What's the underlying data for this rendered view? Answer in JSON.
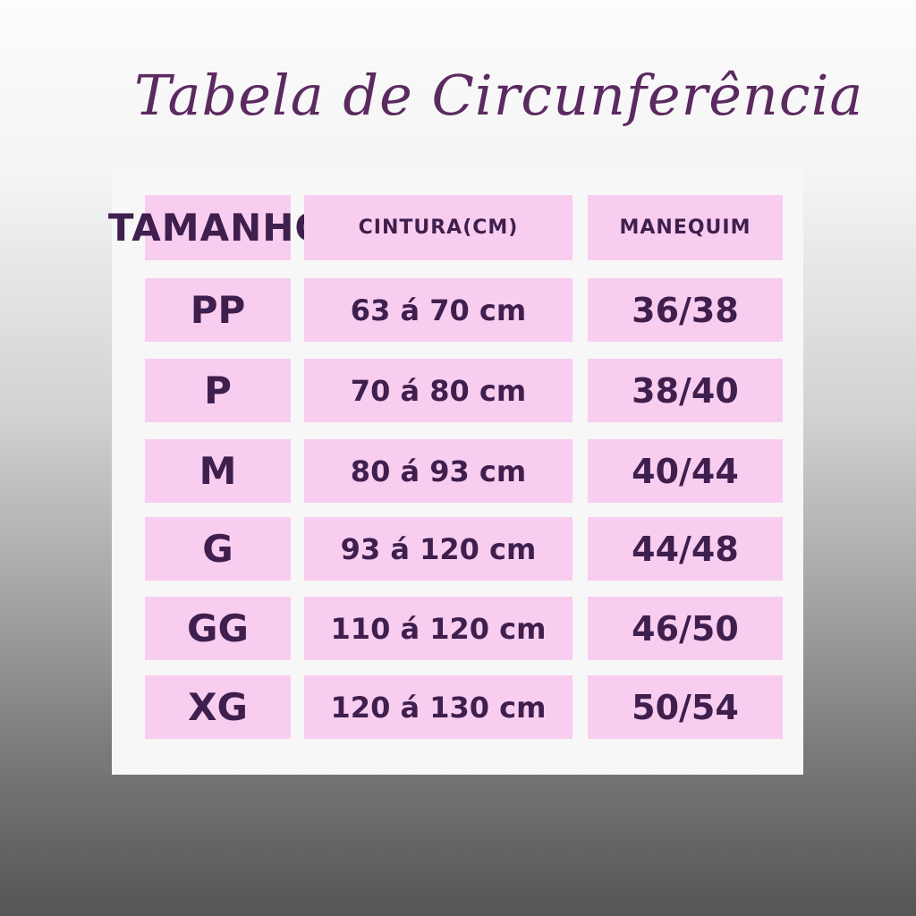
{
  "title": "Tabela de Circunferência",
  "headers": [
    "TAMANHO",
    "CINTURA(CM)",
    "MANEQUIM"
  ],
  "rows": [
    {
      "size": "PP",
      "waist": "63 á 70 cm",
      "mannequin": "36/38"
    },
    {
      "size": "P",
      "waist": "70 á 80 cm",
      "mannequin": "38/40"
    },
    {
      "size": "M",
      "waist": "80 á 93 cm",
      "mannequin": "40/44"
    },
    {
      "size": "G",
      "waist": "93 á 120 cm",
      "mannequin": "44/48"
    },
    {
      "size": "GG",
      "waist": "110 á 120 cm",
      "mannequin": "46/50"
    },
    {
      "size": "XG",
      "waist": "120 á 130 cm",
      "mannequin": "50/54"
    }
  ],
  "colors": {
    "cell": "#f9cdf0",
    "text": "#3e1f4d",
    "title": "#5b2a60"
  }
}
